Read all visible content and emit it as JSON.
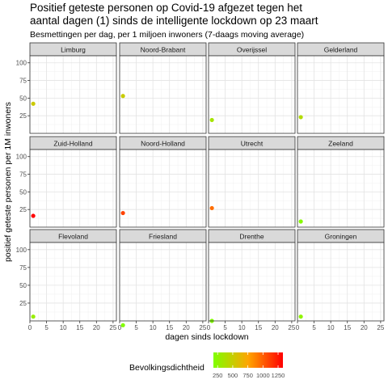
{
  "title_lines": [
    "Positief geteste personen op Covid-19 afgezet tegen het",
    "aantal dagen (1) sinds de intelligente lockdown op 23 maart"
  ],
  "subtitle": "Besmettingen per dag, per 1 miljoen inwoners (7-daags moving average)",
  "chart_data": {
    "type": "scatter",
    "facet": "wrap",
    "xlabel": "dagen sinds lockdown",
    "ylabel": "positief geteste personen per 1M inwoners",
    "xlim": [
      0,
      26
    ],
    "ylim": [
      0,
      110
    ],
    "x_ticks": [
      0,
      5,
      10,
      15,
      20,
      25
    ],
    "x_tick_labels": [
      "0",
      "5",
      "10",
      "15",
      "20",
      "25"
    ],
    "y_ticks": [
      25,
      50,
      75,
      100
    ],
    "y_tick_labels": [
      "25",
      "50",
      "75",
      "100"
    ],
    "grid": true,
    "legend": {
      "title": "Bevolkingsdichtheid",
      "position": "bottom",
      "type": "colorbar",
      "breaks": [
        250,
        500,
        750,
        1000,
        1250
      ],
      "break_labels": [
        "250",
        "500",
        "750",
        "1000",
        "1250"
      ],
      "range": [
        180,
        1330
      ],
      "color_low": "#7fff00",
      "color_mid": "#ffa500",
      "color_high": "#ff0000"
    },
    "panels": [
      {
        "name": "Limburg",
        "points": [
          {
            "x": 1,
            "y": 42,
            "density": 520
          }
        ]
      },
      {
        "name": "Noord-Brabant",
        "points": [
          {
            "x": 1,
            "y": 53,
            "density": 510
          }
        ]
      },
      {
        "name": "Overijssel",
        "points": [
          {
            "x": 1,
            "y": 19,
            "density": 350
          }
        ]
      },
      {
        "name": "Gelderland",
        "points": [
          {
            "x": 1,
            "y": 23,
            "density": 410
          }
        ]
      },
      {
        "name": "Zuid-Holland",
        "points": [
          {
            "x": 1,
            "y": 16,
            "density": 1330
          }
        ]
      },
      {
        "name": "Noord-Holland",
        "points": [
          {
            "x": 1,
            "y": 20,
            "density": 1100
          }
        ]
      },
      {
        "name": "Utrecht",
        "points": [
          {
            "x": 1,
            "y": 27,
            "density": 950
          }
        ]
      },
      {
        "name": "Zeeland",
        "points": [
          {
            "x": 1,
            "y": 8,
            "density": 215
          }
        ]
      },
      {
        "name": "Flevoland",
        "points": [
          {
            "x": 1,
            "y": 6,
            "density": 290
          }
        ]
      },
      {
        "name": "Friesland",
        "points": [
          {
            "x": 1,
            "y": -6,
            "density": 195
          }
        ]
      },
      {
        "name": "Drenthe",
        "points": [
          {
            "x": 1,
            "y": 0,
            "density": 185
          }
        ]
      },
      {
        "name": "Groningen",
        "points": [
          {
            "x": 1,
            "y": 6,
            "density": 250
          }
        ]
      }
    ]
  }
}
